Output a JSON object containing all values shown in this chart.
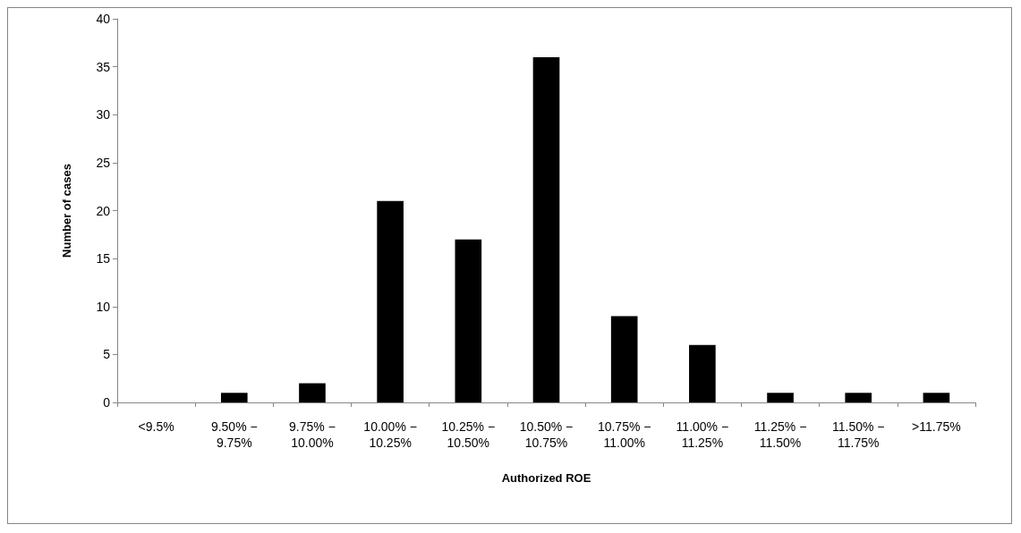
{
  "chart_data": {
    "type": "bar",
    "xlabel": "Authorized ROE",
    "ylabel": "Number of cases",
    "categories": [
      "<9.5%",
      "9.50% −\n9.75%",
      "9.75% −\n10.00%",
      "10.00% −\n10.25%",
      "10.25% −\n10.50%",
      "10.50% −\n10.75%",
      "10.75% −\n11.00%",
      "11.00% −\n11.25%",
      "11.25% −\n11.50%",
      "11.50% −\n11.75%",
      ">11.75%"
    ],
    "values": [
      0,
      1,
      2,
      21,
      17,
      36,
      9,
      6,
      1,
      1,
      1
    ],
    "color": "#000000",
    "ylim": [
      0,
      40
    ],
    "yticks": [
      0,
      5,
      10,
      15,
      20,
      25,
      30,
      35,
      40
    ],
    "grid": false
  }
}
